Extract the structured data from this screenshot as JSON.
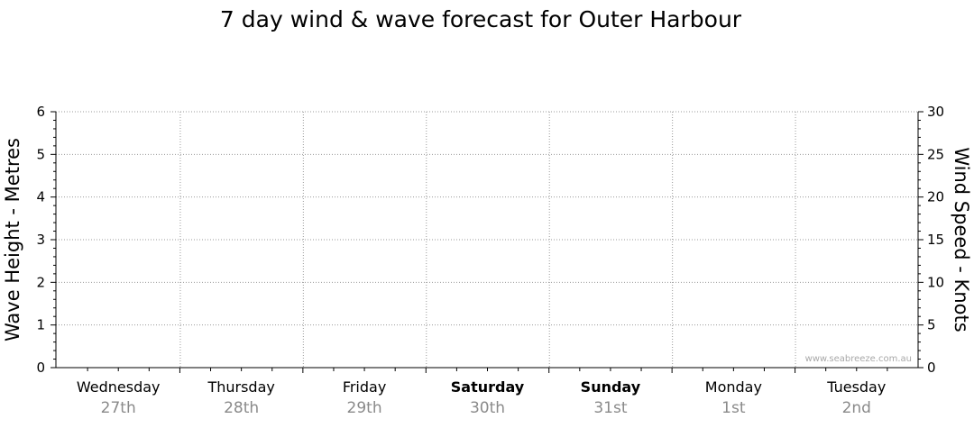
{
  "chart_data": {
    "type": "line",
    "title": "7 day wind & wave forecast for Outer Harbour",
    "ylabel_left": "Wave Height - Metres",
    "ylabel_right": "Wind Speed - Knots",
    "ylim_left": [
      0,
      6
    ],
    "ylim_right": [
      0,
      30
    ],
    "yticks_left": [
      "0",
      "1",
      "2",
      "3",
      "4",
      "5",
      "6"
    ],
    "yticks_right": [
      "0",
      "5",
      "10",
      "15",
      "20",
      "25",
      "30"
    ],
    "grid": true,
    "days": [
      {
        "name": "Wednesday",
        "date": "27th",
        "bold": false
      },
      {
        "name": "Thursday",
        "date": "28th",
        "bold": false
      },
      {
        "name": "Friday",
        "date": "29th",
        "bold": false
      },
      {
        "name": "Saturday",
        "date": "30th",
        "bold": true
      },
      {
        "name": "Sunday",
        "date": "31st",
        "bold": true
      },
      {
        "name": "Monday",
        "date": "1st",
        "bold": false
      },
      {
        "name": "Tuesday",
        "date": "2nd",
        "bold": false
      }
    ],
    "series": []
  },
  "watermark": "www.seabreeze.com.au"
}
